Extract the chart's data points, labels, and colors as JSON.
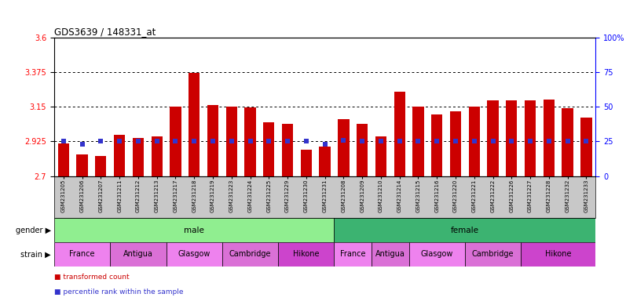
{
  "title": "GDS3639 / 148331_at",
  "samples": [
    "GSM231205",
    "GSM231206",
    "GSM231207",
    "GSM231211",
    "GSM231212",
    "GSM231213",
    "GSM231217",
    "GSM231218",
    "GSM231219",
    "GSM231223",
    "GSM231224",
    "GSM231225",
    "GSM231229",
    "GSM231230",
    "GSM231231",
    "GSM231208",
    "GSM231209",
    "GSM231210",
    "GSM231214",
    "GSM231215",
    "GSM231216",
    "GSM231220",
    "GSM231221",
    "GSM231222",
    "GSM231226",
    "GSM231227",
    "GSM231228",
    "GSM231232",
    "GSM231233"
  ],
  "bar_values": [
    2.91,
    2.84,
    2.83,
    2.97,
    2.95,
    2.96,
    3.15,
    3.37,
    3.16,
    3.15,
    3.145,
    3.05,
    3.04,
    2.87,
    2.89,
    3.07,
    3.04,
    2.96,
    3.25,
    3.15,
    3.1,
    3.12,
    3.15,
    3.19,
    3.19,
    3.19,
    3.2,
    3.14,
    3.08
  ],
  "blue_dot_values": [
    2.925,
    2.905,
    2.925,
    2.925,
    2.925,
    2.925,
    2.925,
    2.925,
    2.925,
    2.925,
    2.925,
    2.925,
    2.925,
    2.925,
    2.905,
    2.93,
    2.925,
    2.925,
    2.925,
    2.925,
    2.925,
    2.925,
    2.925,
    2.925,
    2.925,
    2.925,
    2.925,
    2.925,
    2.925
  ],
  "ylim": [
    2.7,
    3.6
  ],
  "yticks_left": [
    2.7,
    2.925,
    3.15,
    3.375,
    3.6
  ],
  "ytick_labels_left": [
    "2.7",
    "2.925",
    "3.15",
    "3.375",
    "3.6"
  ],
  "yticks_right_vals": [
    0,
    25,
    50,
    75,
    100
  ],
  "yticks_right_labels": [
    "0",
    "25",
    "50",
    "75",
    "100%"
  ],
  "hlines": [
    2.925,
    3.15,
    3.375
  ],
  "gender_groups": [
    {
      "label": "male",
      "start": 0,
      "end": 15,
      "color": "#90EE90"
    },
    {
      "label": "female",
      "start": 15,
      "end": 29,
      "color": "#3CB371"
    }
  ],
  "strain_groups": [
    {
      "label": "France",
      "start": 0,
      "end": 3,
      "color": "#EE82EE"
    },
    {
      "label": "Antigua",
      "start": 3,
      "end": 6,
      "color": "#DA70D6"
    },
    {
      "label": "Glasgow",
      "start": 6,
      "end": 9,
      "color": "#EE82EE"
    },
    {
      "label": "Cambridge",
      "start": 9,
      "end": 12,
      "color": "#DA70D6"
    },
    {
      "label": "Hikone",
      "start": 12,
      "end": 15,
      "color": "#CC44CC"
    },
    {
      "label": "France",
      "start": 15,
      "end": 17,
      "color": "#EE82EE"
    },
    {
      "label": "Antigua",
      "start": 17,
      "end": 19,
      "color": "#DA70D6"
    },
    {
      "label": "Glasgow",
      "start": 19,
      "end": 22,
      "color": "#EE82EE"
    },
    {
      "label": "Cambridge",
      "start": 22,
      "end": 25,
      "color": "#DA70D6"
    },
    {
      "label": "Hikone",
      "start": 25,
      "end": 29,
      "color": "#CC44CC"
    }
  ],
  "bar_color": "#CC0000",
  "dot_color": "#3333CC",
  "xtick_bg": "#C8C8C8",
  "legend": [
    {
      "label": "transformed count",
      "color": "#CC0000"
    },
    {
      "label": "percentile rank within the sample",
      "color": "#3333CC"
    }
  ]
}
